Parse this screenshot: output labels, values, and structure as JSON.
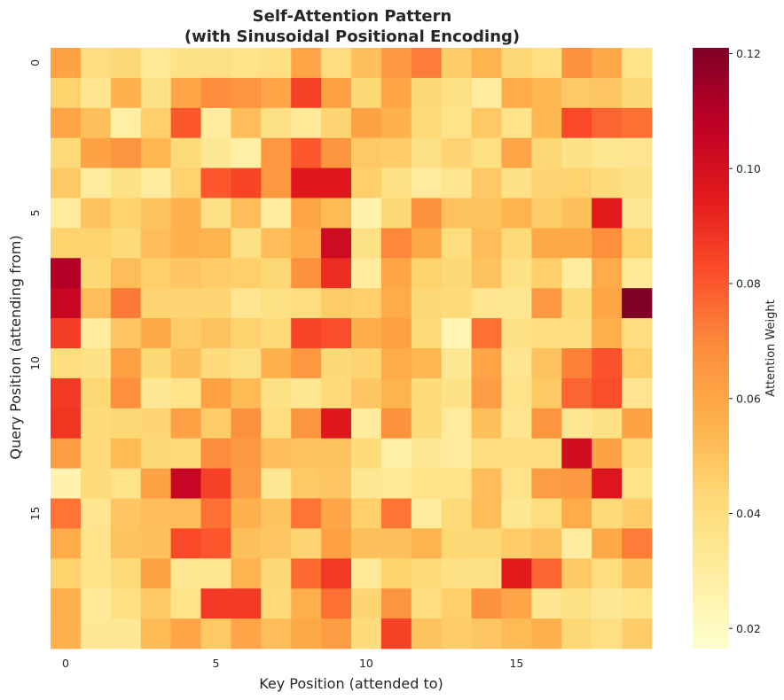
{
  "chart_data": {
    "type": "heatmap",
    "title": "Self-Attention Pattern",
    "subtitle": "(with Sinusoidal Positional Encoding)",
    "xlabel": "Key Position (attended to)",
    "ylabel": "Query Position (attending from)",
    "x_ticks": [
      "0",
      "5",
      "10",
      "15"
    ],
    "y_ticks": [
      "0",
      "5",
      "10",
      "15"
    ],
    "colorbar": {
      "label": "Attention Weight",
      "colormap": "YlOrRd",
      "range": [
        0.0165,
        0.121
      ],
      "ticks": [
        "0.02",
        "0.04",
        "0.06",
        "0.08",
        "0.10",
        "0.12"
      ]
    },
    "matrix": [
      [
        0.061,
        0.04,
        0.043,
        0.032,
        0.037,
        0.038,
        0.036,
        0.039,
        0.06,
        0.04,
        0.051,
        0.064,
        0.072,
        0.047,
        0.055,
        0.043,
        0.039,
        0.067,
        0.059,
        0.036
      ],
      [
        0.045,
        0.035,
        0.056,
        0.037,
        0.06,
        0.069,
        0.066,
        0.06,
        0.085,
        0.062,
        0.043,
        0.06,
        0.043,
        0.038,
        0.03,
        0.058,
        0.054,
        0.048,
        0.049,
        0.043
      ],
      [
        0.06,
        0.051,
        0.028,
        0.046,
        0.08,
        0.03,
        0.052,
        0.038,
        0.032,
        0.044,
        0.061,
        0.056,
        0.042,
        0.036,
        0.048,
        0.036,
        0.054,
        0.083,
        0.077,
        0.075
      ],
      [
        0.042,
        0.061,
        0.066,
        0.054,
        0.042,
        0.033,
        0.028,
        0.065,
        0.08,
        0.066,
        0.048,
        0.047,
        0.037,
        0.044,
        0.039,
        0.06,
        0.043,
        0.037,
        0.034,
        0.035
      ],
      [
        0.048,
        0.03,
        0.038,
        0.03,
        0.045,
        0.08,
        0.084,
        0.065,
        0.096,
        0.096,
        0.046,
        0.038,
        0.031,
        0.035,
        0.048,
        0.037,
        0.044,
        0.045,
        0.041,
        0.038
      ],
      [
        0.031,
        0.05,
        0.045,
        0.05,
        0.056,
        0.038,
        0.052,
        0.03,
        0.06,
        0.053,
        0.026,
        0.043,
        0.067,
        0.05,
        0.05,
        0.055,
        0.047,
        0.051,
        0.095,
        0.033
      ],
      [
        0.045,
        0.045,
        0.042,
        0.052,
        0.056,
        0.055,
        0.038,
        0.052,
        0.058,
        0.102,
        0.038,
        0.07,
        0.059,
        0.04,
        0.052,
        0.042,
        0.059,
        0.059,
        0.068,
        0.045
      ],
      [
        0.11,
        0.043,
        0.052,
        0.046,
        0.049,
        0.047,
        0.046,
        0.043,
        0.067,
        0.09,
        0.03,
        0.06,
        0.045,
        0.043,
        0.05,
        0.038,
        0.046,
        0.03,
        0.058,
        0.032
      ],
      [
        0.104,
        0.052,
        0.073,
        0.044,
        0.044,
        0.044,
        0.035,
        0.038,
        0.04,
        0.047,
        0.046,
        0.058,
        0.043,
        0.041,
        0.035,
        0.034,
        0.064,
        0.042,
        0.06,
        0.121
      ],
      [
        0.086,
        0.03,
        0.049,
        0.059,
        0.047,
        0.05,
        0.045,
        0.042,
        0.084,
        0.082,
        0.058,
        0.062,
        0.042,
        0.024,
        0.075,
        0.037,
        0.04,
        0.04,
        0.057,
        0.04
      ],
      [
        0.04,
        0.038,
        0.062,
        0.043,
        0.051,
        0.041,
        0.038,
        0.056,
        0.065,
        0.043,
        0.044,
        0.058,
        0.054,
        0.034,
        0.06,
        0.035,
        0.05,
        0.071,
        0.081,
        0.046
      ],
      [
        0.087,
        0.043,
        0.068,
        0.033,
        0.036,
        0.062,
        0.053,
        0.038,
        0.034,
        0.042,
        0.049,
        0.055,
        0.041,
        0.037,
        0.063,
        0.036,
        0.048,
        0.077,
        0.082,
        0.035
      ],
      [
        0.088,
        0.041,
        0.043,
        0.044,
        0.062,
        0.047,
        0.067,
        0.04,
        0.066,
        0.096,
        0.031,
        0.067,
        0.042,
        0.031,
        0.051,
        0.035,
        0.066,
        0.034,
        0.038,
        0.061
      ],
      [
        0.063,
        0.041,
        0.053,
        0.043,
        0.041,
        0.069,
        0.064,
        0.052,
        0.05,
        0.05,
        0.041,
        0.028,
        0.033,
        0.031,
        0.04,
        0.04,
        0.04,
        0.101,
        0.061,
        0.042
      ],
      [
        0.025,
        0.041,
        0.036,
        0.061,
        0.105,
        0.085,
        0.063,
        0.033,
        0.048,
        0.049,
        0.034,
        0.032,
        0.036,
        0.036,
        0.052,
        0.036,
        0.063,
        0.064,
        0.097,
        0.036
      ],
      [
        0.074,
        0.035,
        0.049,
        0.052,
        0.052,
        0.075,
        0.056,
        0.05,
        0.074,
        0.06,
        0.046,
        0.074,
        0.03,
        0.042,
        0.052,
        0.034,
        0.04,
        0.058,
        0.042,
        0.047
      ],
      [
        0.058,
        0.036,
        0.05,
        0.051,
        0.083,
        0.08,
        0.051,
        0.049,
        0.044,
        0.062,
        0.051,
        0.051,
        0.055,
        0.043,
        0.043,
        0.047,
        0.05,
        0.03,
        0.059,
        0.072
      ],
      [
        0.045,
        0.036,
        0.042,
        0.061,
        0.034,
        0.034,
        0.055,
        0.043,
        0.076,
        0.087,
        0.032,
        0.045,
        0.042,
        0.038,
        0.037,
        0.095,
        0.077,
        0.048,
        0.04,
        0.05
      ],
      [
        0.057,
        0.032,
        0.039,
        0.048,
        0.036,
        0.087,
        0.087,
        0.042,
        0.057,
        0.075,
        0.044,
        0.066,
        0.04,
        0.046,
        0.067,
        0.06,
        0.035,
        0.038,
        0.033,
        0.036
      ],
      [
        0.056,
        0.033,
        0.033,
        0.053,
        0.06,
        0.048,
        0.06,
        0.052,
        0.059,
        0.063,
        0.041,
        0.085,
        0.05,
        0.047,
        0.049,
        0.053,
        0.056,
        0.043,
        0.039,
        0.047
      ]
    ]
  }
}
